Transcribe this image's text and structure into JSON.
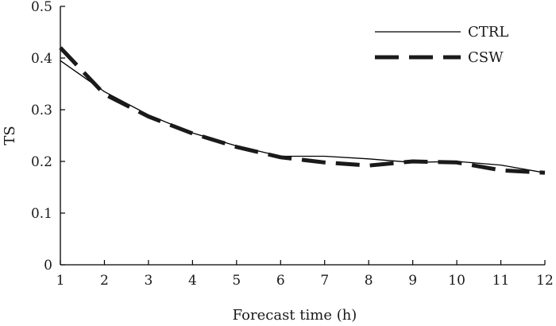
{
  "chart_data": {
    "type": "line",
    "title": "",
    "xlabel": "Forecast time (h)",
    "ylabel": "TS",
    "xlim": [
      1,
      12
    ],
    "ylim": [
      0,
      0.5
    ],
    "grid": false,
    "legend_position": "top-right",
    "x": [
      1,
      2,
      3,
      4,
      5,
      6,
      7,
      8,
      9,
      10,
      11,
      12
    ],
    "x_tick_labels": [
      "1",
      "2",
      "3",
      "4",
      "5",
      "6",
      "7",
      "8",
      "9",
      "10",
      "11",
      "12"
    ],
    "y_ticks": [
      0,
      0.1,
      0.2,
      0.3,
      0.4,
      0.5
    ],
    "y_tick_labels": [
      "0",
      "0.1",
      "0.2",
      "0.3",
      "0.4",
      "0.5"
    ],
    "series": [
      {
        "name": "CTRL",
        "style": "solid-thin",
        "color": "#000000",
        "values": [
          0.395,
          0.335,
          0.29,
          0.255,
          0.23,
          0.21,
          0.21,
          0.205,
          0.198,
          0.2,
          0.193,
          0.178
        ]
      },
      {
        "name": "CSW",
        "style": "dashed-thick",
        "color": "#1a1a1a",
        "values": [
          0.42,
          0.33,
          0.287,
          0.254,
          0.228,
          0.208,
          0.198,
          0.192,
          0.2,
          0.198,
          0.183,
          0.178
        ]
      }
    ]
  }
}
